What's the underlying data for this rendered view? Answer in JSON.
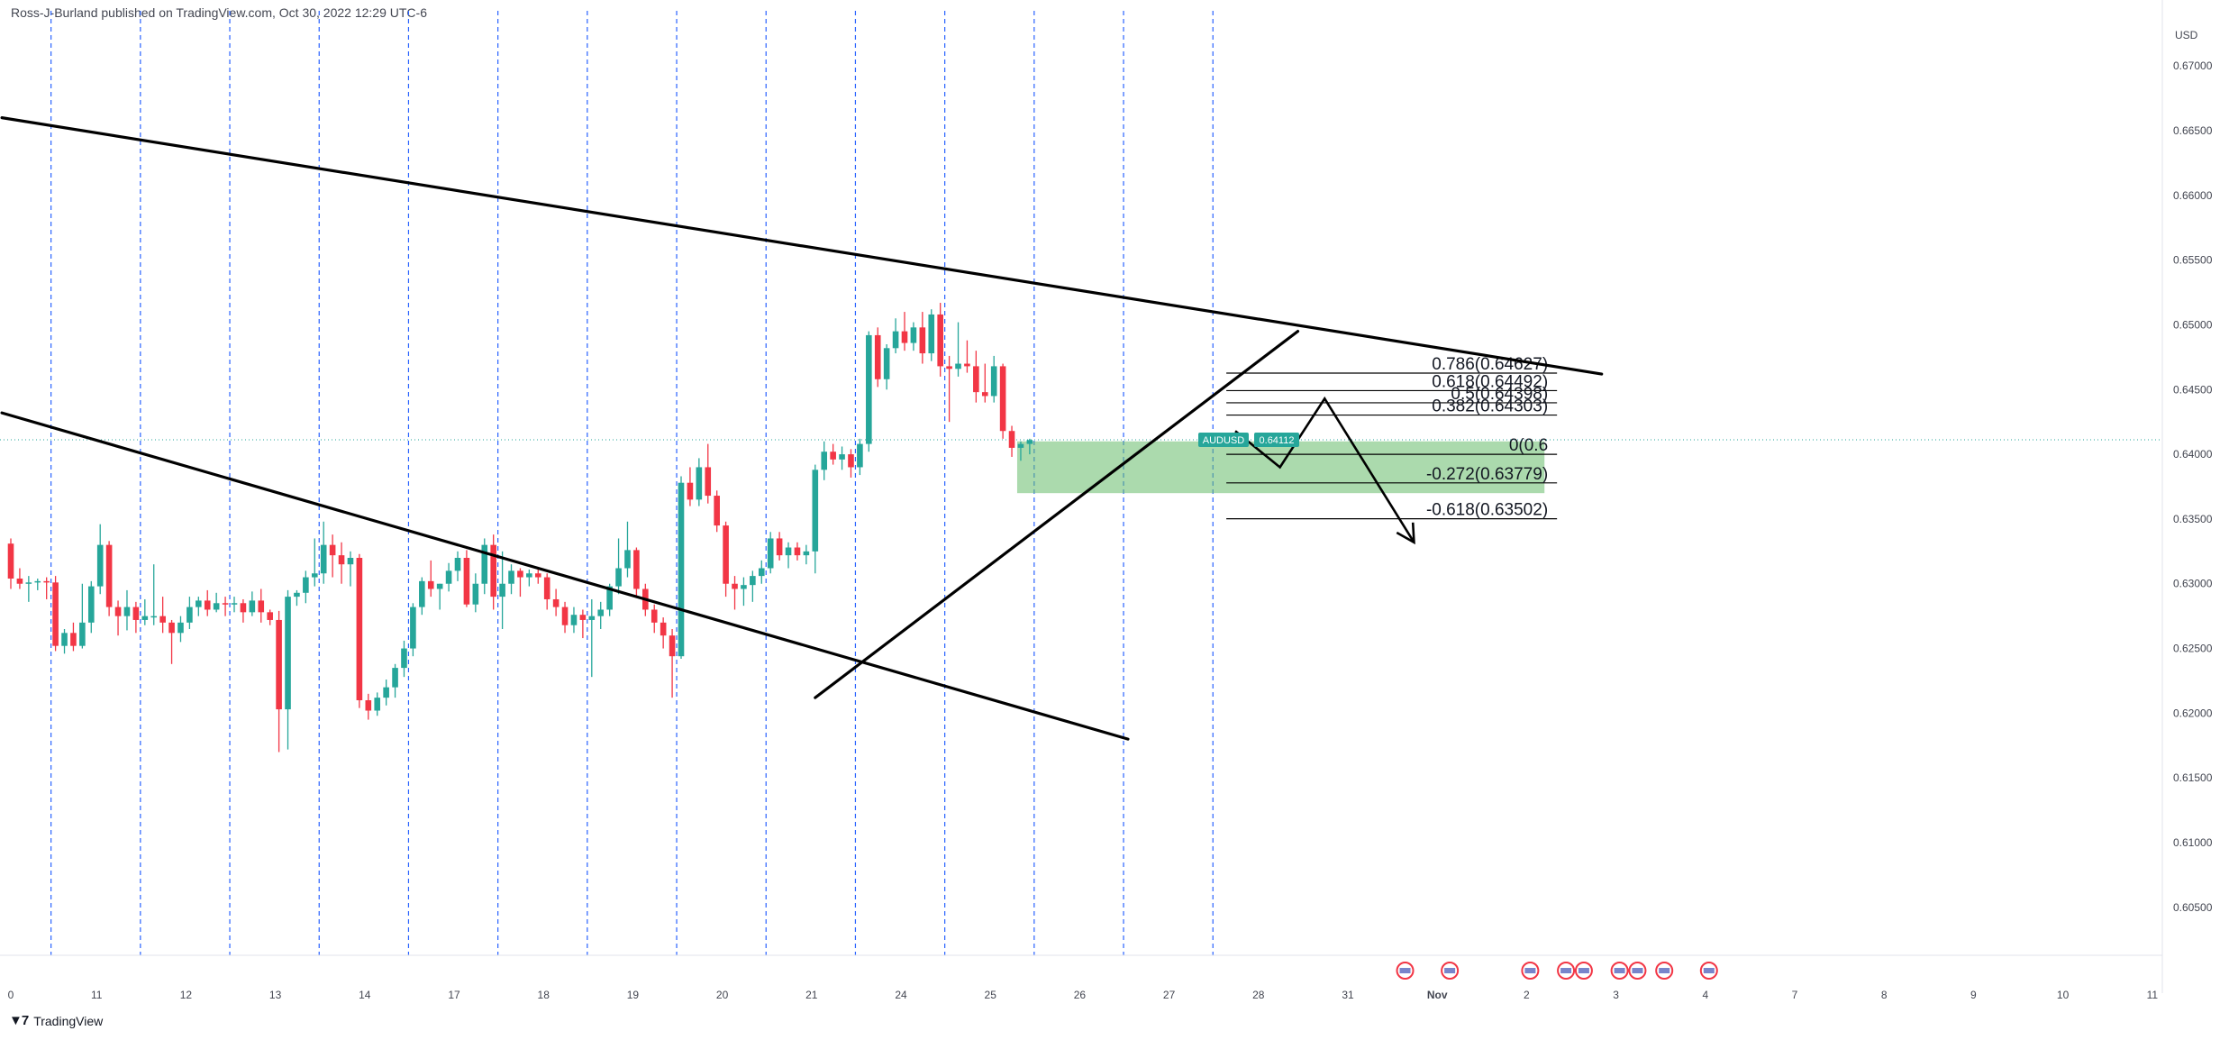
{
  "header": {
    "published": "Ross-J-Burland published on TradingView.com, Oct 30, 2022 12:29 UTC-6"
  },
  "footer": {
    "brand": "TradingView",
    "logo_icon": "tradingview-logo-icon"
  },
  "colors": {
    "up": "#26a69a",
    "down": "#f23645",
    "zone": "#66bb6a",
    "vline": "#2962ff",
    "price_tag": "#26a69a",
    "trendline": "#000000"
  },
  "chart_data": {
    "type": "candlestick",
    "symbol": "AUDUSD",
    "currency": "USD",
    "last_price": 0.64112,
    "last_price_label": "0.64112",
    "ylim": [
      0.6013,
      0.6737
    ],
    "y_ticks": [
      "0.67000",
      "0.66500",
      "0.66000",
      "0.65500",
      "0.65000",
      "0.64500",
      "0.64000",
      "0.63500",
      "0.63000",
      "0.62500",
      "0.62000",
      "0.61500",
      "0.61000",
      "0.60500"
    ],
    "x_ticks": [
      "0",
      "11",
      "12",
      "13",
      "14",
      "17",
      "18",
      "19",
      "20",
      "21",
      "24",
      "25",
      "26",
      "27",
      "28",
      "31",
      "Nov",
      "2",
      "3",
      "4",
      "7",
      "8",
      "9",
      "10",
      "11"
    ],
    "bar_index_of_tick": [
      0,
      10,
      20,
      30,
      40,
      50,
      60,
      70,
      80,
      90,
      100,
      110,
      120,
      130,
      140,
      150,
      160,
      170,
      180,
      190,
      200,
      210,
      220,
      230,
      240
    ],
    "session_breaks": [
      4,
      14,
      24,
      34,
      44,
      54,
      64,
      74,
      84,
      94,
      104,
      114,
      124,
      134
    ],
    "candles": [
      [
        0.6331,
        0.6335,
        0.6296,
        0.6304
      ],
      [
        0.6304,
        0.6312,
        0.6296,
        0.63
      ],
      [
        0.63,
        0.6306,
        0.6286,
        0.6301
      ],
      [
        0.6301,
        0.6304,
        0.6295,
        0.6302
      ],
      [
        0.6302,
        0.6305,
        0.6288,
        0.6301
      ],
      [
        0.6301,
        0.6306,
        0.6248,
        0.6252
      ],
      [
        0.6252,
        0.6265,
        0.6246,
        0.6262
      ],
      [
        0.6262,
        0.627,
        0.6248,
        0.6252
      ],
      [
        0.6252,
        0.63,
        0.625,
        0.627
      ],
      [
        0.627,
        0.6302,
        0.6262,
        0.6298
      ],
      [
        0.6298,
        0.6346,
        0.6292,
        0.633
      ],
      [
        0.633,
        0.6333,
        0.6275,
        0.6282
      ],
      [
        0.6282,
        0.6287,
        0.626,
        0.6275
      ],
      [
        0.6275,
        0.6295,
        0.6264,
        0.6282
      ],
      [
        0.6282,
        0.6286,
        0.6262,
        0.6272
      ],
      [
        0.6272,
        0.6288,
        0.6268,
        0.6275
      ],
      [
        0.6275,
        0.6315,
        0.6268,
        0.6275
      ],
      [
        0.6275,
        0.629,
        0.6262,
        0.627
      ],
      [
        0.627,
        0.6272,
        0.6238,
        0.6262
      ],
      [
        0.6262,
        0.6275,
        0.6255,
        0.627
      ],
      [
        0.627,
        0.629,
        0.6265,
        0.6282
      ],
      [
        0.6282,
        0.629,
        0.6275,
        0.6287
      ],
      [
        0.6287,
        0.6295,
        0.6275,
        0.628
      ],
      [
        0.628,
        0.6293,
        0.6278,
        0.6285
      ],
      [
        0.6285,
        0.629,
        0.6275,
        0.6284
      ],
      [
        0.6284,
        0.629,
        0.6278,
        0.6285
      ],
      [
        0.6285,
        0.6288,
        0.627,
        0.6278
      ],
      [
        0.6278,
        0.6294,
        0.6275,
        0.6287
      ],
      [
        0.6287,
        0.6296,
        0.627,
        0.6278
      ],
      [
        0.6278,
        0.628,
        0.6268,
        0.6272
      ],
      [
        0.6272,
        0.6279,
        0.617,
        0.6203
      ],
      [
        0.6203,
        0.6295,
        0.6172,
        0.629
      ],
      [
        0.629,
        0.6295,
        0.6283,
        0.6293
      ],
      [
        0.6293,
        0.631,
        0.6285,
        0.6305
      ],
      [
        0.6305,
        0.6335,
        0.6298,
        0.6308
      ],
      [
        0.6308,
        0.6348,
        0.63,
        0.633
      ],
      [
        0.633,
        0.6338,
        0.6305,
        0.6322
      ],
      [
        0.6322,
        0.6332,
        0.63,
        0.6315
      ],
      [
        0.6315,
        0.6325,
        0.6298,
        0.632
      ],
      [
        0.632,
        0.6323,
        0.6204,
        0.621
      ],
      [
        0.621,
        0.6215,
        0.6195,
        0.6202
      ],
      [
        0.6202,
        0.6216,
        0.6198,
        0.6212
      ],
      [
        0.6212,
        0.6226,
        0.6206,
        0.622
      ],
      [
        0.622,
        0.6238,
        0.6212,
        0.6235
      ],
      [
        0.6235,
        0.6256,
        0.6228,
        0.625
      ],
      [
        0.625,
        0.6285,
        0.6244,
        0.6282
      ],
      [
        0.6282,
        0.6305,
        0.6276,
        0.6302
      ],
      [
        0.6302,
        0.6318,
        0.629,
        0.6296
      ],
      [
        0.6296,
        0.63,
        0.628,
        0.63
      ],
      [
        0.63,
        0.6316,
        0.6294,
        0.631
      ],
      [
        0.631,
        0.6325,
        0.6302,
        0.632
      ],
      [
        0.632,
        0.6326,
        0.6282,
        0.6284
      ],
      [
        0.6284,
        0.6308,
        0.6278,
        0.63
      ],
      [
        0.63,
        0.6335,
        0.6292,
        0.633
      ],
      [
        0.633,
        0.6338,
        0.628,
        0.629
      ],
      [
        0.629,
        0.6325,
        0.6265,
        0.63
      ],
      [
        0.63,
        0.6315,
        0.6292,
        0.631
      ],
      [
        0.631,
        0.6312,
        0.629,
        0.6305
      ],
      [
        0.6305,
        0.6311,
        0.6298,
        0.6308
      ],
      [
        0.6308,
        0.6313,
        0.63,
        0.6305
      ],
      [
        0.6305,
        0.6308,
        0.628,
        0.6288
      ],
      [
        0.6288,
        0.6296,
        0.6275,
        0.6282
      ],
      [
        0.6282,
        0.6286,
        0.6262,
        0.6268
      ],
      [
        0.6268,
        0.6282,
        0.6262,
        0.6276
      ],
      [
        0.6276,
        0.628,
        0.6258,
        0.6272
      ],
      [
        0.6272,
        0.6288,
        0.6228,
        0.6275
      ],
      [
        0.6275,
        0.6286,
        0.6265,
        0.628
      ],
      [
        0.628,
        0.63,
        0.6275,
        0.6298
      ],
      [
        0.6298,
        0.6335,
        0.6292,
        0.6312
      ],
      [
        0.6312,
        0.6348,
        0.6305,
        0.6326
      ],
      [
        0.6326,
        0.6328,
        0.629,
        0.6296
      ],
      [
        0.6296,
        0.63,
        0.6275,
        0.628
      ],
      [
        0.628,
        0.6284,
        0.6262,
        0.627
      ],
      [
        0.627,
        0.6274,
        0.625,
        0.626
      ],
      [
        0.626,
        0.6265,
        0.6212,
        0.6244
      ],
      [
        0.6244,
        0.6383,
        0.6242,
        0.6378
      ],
      [
        0.6378,
        0.639,
        0.636,
        0.6365
      ],
      [
        0.6365,
        0.6397,
        0.636,
        0.639
      ],
      [
        0.639,
        0.6408,
        0.6362,
        0.6368
      ],
      [
        0.6368,
        0.6372,
        0.634,
        0.6345
      ],
      [
        0.6345,
        0.6348,
        0.629,
        0.63
      ],
      [
        0.63,
        0.6306,
        0.628,
        0.6296
      ],
      [
        0.6296,
        0.6305,
        0.6283,
        0.6299
      ],
      [
        0.6299,
        0.631,
        0.6286,
        0.6306
      ],
      [
        0.6306,
        0.6318,
        0.63,
        0.6312
      ],
      [
        0.6312,
        0.634,
        0.6308,
        0.6335
      ],
      [
        0.6335,
        0.634,
        0.6318,
        0.6322
      ],
      [
        0.6322,
        0.6332,
        0.6312,
        0.6328
      ],
      [
        0.6328,
        0.6332,
        0.6318,
        0.6322
      ],
      [
        0.6322,
        0.633,
        0.6315,
        0.6325
      ],
      [
        0.6325,
        0.6392,
        0.6308,
        0.6388
      ],
      [
        0.6388,
        0.641,
        0.638,
        0.6402
      ],
      [
        0.6402,
        0.6408,
        0.6392,
        0.6396
      ],
      [
        0.6396,
        0.6406,
        0.6388,
        0.64
      ],
      [
        0.64,
        0.6404,
        0.6382,
        0.639
      ],
      [
        0.639,
        0.6412,
        0.6384,
        0.6408
      ],
      [
        0.6408,
        0.6495,
        0.6402,
        0.6492
      ],
      [
        0.6492,
        0.6498,
        0.6452,
        0.6458
      ],
      [
        0.6458,
        0.6485,
        0.645,
        0.6482
      ],
      [
        0.6482,
        0.6505,
        0.6478,
        0.6495
      ],
      [
        0.6495,
        0.651,
        0.648,
        0.6486
      ],
      [
        0.6486,
        0.6502,
        0.648,
        0.6498
      ],
      [
        0.6498,
        0.651,
        0.647,
        0.6478
      ],
      [
        0.6478,
        0.6512,
        0.6472,
        0.6508
      ],
      [
        0.6508,
        0.6517,
        0.646,
        0.6468
      ],
      [
        0.6468,
        0.6476,
        0.6425,
        0.6466
      ],
      [
        0.6466,
        0.6502,
        0.646,
        0.647
      ],
      [
        0.647,
        0.6488,
        0.6463,
        0.6468
      ],
      [
        0.6468,
        0.648,
        0.644,
        0.6448
      ],
      [
        0.6448,
        0.647,
        0.644,
        0.6445
      ],
      [
        0.6445,
        0.6476,
        0.644,
        0.6468
      ],
      [
        0.6468,
        0.647,
        0.6412,
        0.6418
      ],
      [
        0.6418,
        0.6422,
        0.6398,
        0.6405
      ],
      [
        0.6405,
        0.641,
        0.6395,
        0.6408
      ],
      [
        0.6408,
        0.6412,
        0.64,
        0.6411
      ]
    ],
    "fib_levels": [
      {
        "label": "0.786(0.64627)",
        "price": 0.64627
      },
      {
        "label": "0.618(0.64492)",
        "price": 0.64492
      },
      {
        "label": "0.5(0.64398)",
        "price": 0.64398
      },
      {
        "label": "0.382(0.64303)",
        "price": 0.64303
      },
      {
        "label": "0(0.6",
        "price": 0.64
      },
      {
        "label": "-0.272(0.63779)",
        "price": 0.63779
      },
      {
        "label": "-0.618(0.63502)",
        "price": 0.63502
      }
    ],
    "zone": {
      "from_bar": 113,
      "to_bar": 172,
      "top": 0.641,
      "bottom": 0.637
    },
    "trendlines": [
      {
        "x1": -1,
        "y1": 0.666,
        "x2": 178,
        "y2": 0.6462
      },
      {
        "x1": -1,
        "y1": 0.6432,
        "x2": 125,
        "y2": 0.618
      },
      {
        "x1": 90,
        "y1": 0.6212,
        "x2": 144,
        "y2": 0.6495
      }
    ],
    "projection_path": [
      [
        137,
        0.6418
      ],
      [
        142,
        0.639
      ],
      [
        147,
        0.6443
      ],
      [
        157,
        0.6332
      ]
    ],
    "event_flags": [
      156,
      161,
      170,
      174,
      176,
      180,
      182,
      185,
      190
    ]
  }
}
